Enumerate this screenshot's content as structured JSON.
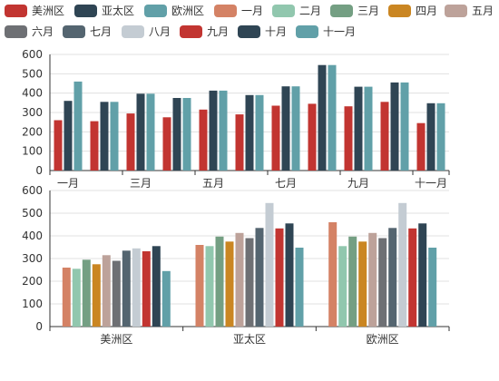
{
  "chart_data": [
    {
      "type": "bar",
      "categories": [
        "一月",
        "二月",
        "三月",
        "四月",
        "五月",
        "六月",
        "七月",
        "八月",
        "九月",
        "十月",
        "十一月"
      ],
      "x_tick_labels": [
        "一月",
        "三月",
        "五月",
        "七月",
        "九月",
        "十一月"
      ],
      "series": [
        {
          "name": "美洲区",
          "color": "#c23531",
          "values": [
            260,
            255,
            295,
            275,
            315,
            290,
            335,
            345,
            332,
            355,
            245
          ]
        },
        {
          "name": "亚太区",
          "color": "#2f4554",
          "values": [
            360,
            355,
            397,
            375,
            413,
            390,
            435,
            545,
            433,
            455,
            348
          ]
        },
        {
          "name": "欧洲区",
          "color": "#61a0a8",
          "values": [
            460,
            355,
            397,
            375,
            413,
            390,
            435,
            545,
            433,
            455,
            348
          ]
        }
      ],
      "ylim": [
        0,
        600
      ],
      "yticks": [
        0,
        100,
        200,
        300,
        400,
        500,
        600
      ],
      "grid": true
    },
    {
      "type": "bar",
      "categories": [
        "美洲区",
        "亚太区",
        "欧洲区"
      ],
      "series": [
        {
          "name": "一月",
          "color": "#d48265",
          "values": [
            260,
            360,
            460
          ]
        },
        {
          "name": "二月",
          "color": "#91c7ae",
          "values": [
            255,
            355,
            355
          ]
        },
        {
          "name": "三月",
          "color": "#749f83",
          "values": [
            295,
            397,
            397
          ]
        },
        {
          "name": "四月",
          "color": "#ca8622",
          "values": [
            275,
            375,
            375
          ]
        },
        {
          "name": "五月",
          "color": "#bda29a",
          "values": [
            315,
            413,
            413
          ]
        },
        {
          "name": "六月",
          "color": "#6e7074",
          "values": [
            290,
            390,
            390
          ]
        },
        {
          "name": "七月",
          "color": "#546570",
          "values": [
            335,
            435,
            435
          ]
        },
        {
          "name": "八月",
          "color": "#c4ccd3",
          "values": [
            345,
            545,
            545
          ]
        },
        {
          "name": "九月",
          "color": "#c23531",
          "values": [
            332,
            433,
            433
          ]
        },
        {
          "name": "十月",
          "color": "#2f4554",
          "values": [
            355,
            455,
            455
          ]
        },
        {
          "name": "十一月",
          "color": "#61a0a8",
          "values": [
            245,
            348,
            348
          ]
        }
      ],
      "ylim": [
        0,
        600
      ],
      "yticks": [
        0,
        100,
        200,
        300,
        400,
        500,
        600
      ],
      "grid": true
    }
  ],
  "legend": [
    {
      "label": "美洲区",
      "color": "#c23531"
    },
    {
      "label": "亚太区",
      "color": "#2f4554"
    },
    {
      "label": "欧洲区",
      "color": "#61a0a8"
    },
    {
      "label": "一月",
      "color": "#d48265"
    },
    {
      "label": "二月",
      "color": "#91c7ae"
    },
    {
      "label": "三月",
      "color": "#749f83"
    },
    {
      "label": "四月",
      "color": "#ca8622"
    },
    {
      "label": "五月",
      "color": "#bda29a"
    },
    {
      "label": "六月",
      "color": "#6e7074"
    },
    {
      "label": "七月",
      "color": "#546570"
    },
    {
      "label": "八月",
      "color": "#c4ccd3"
    },
    {
      "label": "九月",
      "color": "#c23531"
    },
    {
      "label": "十月",
      "color": "#2f4554"
    },
    {
      "label": "十一月",
      "color": "#61a0a8"
    }
  ]
}
